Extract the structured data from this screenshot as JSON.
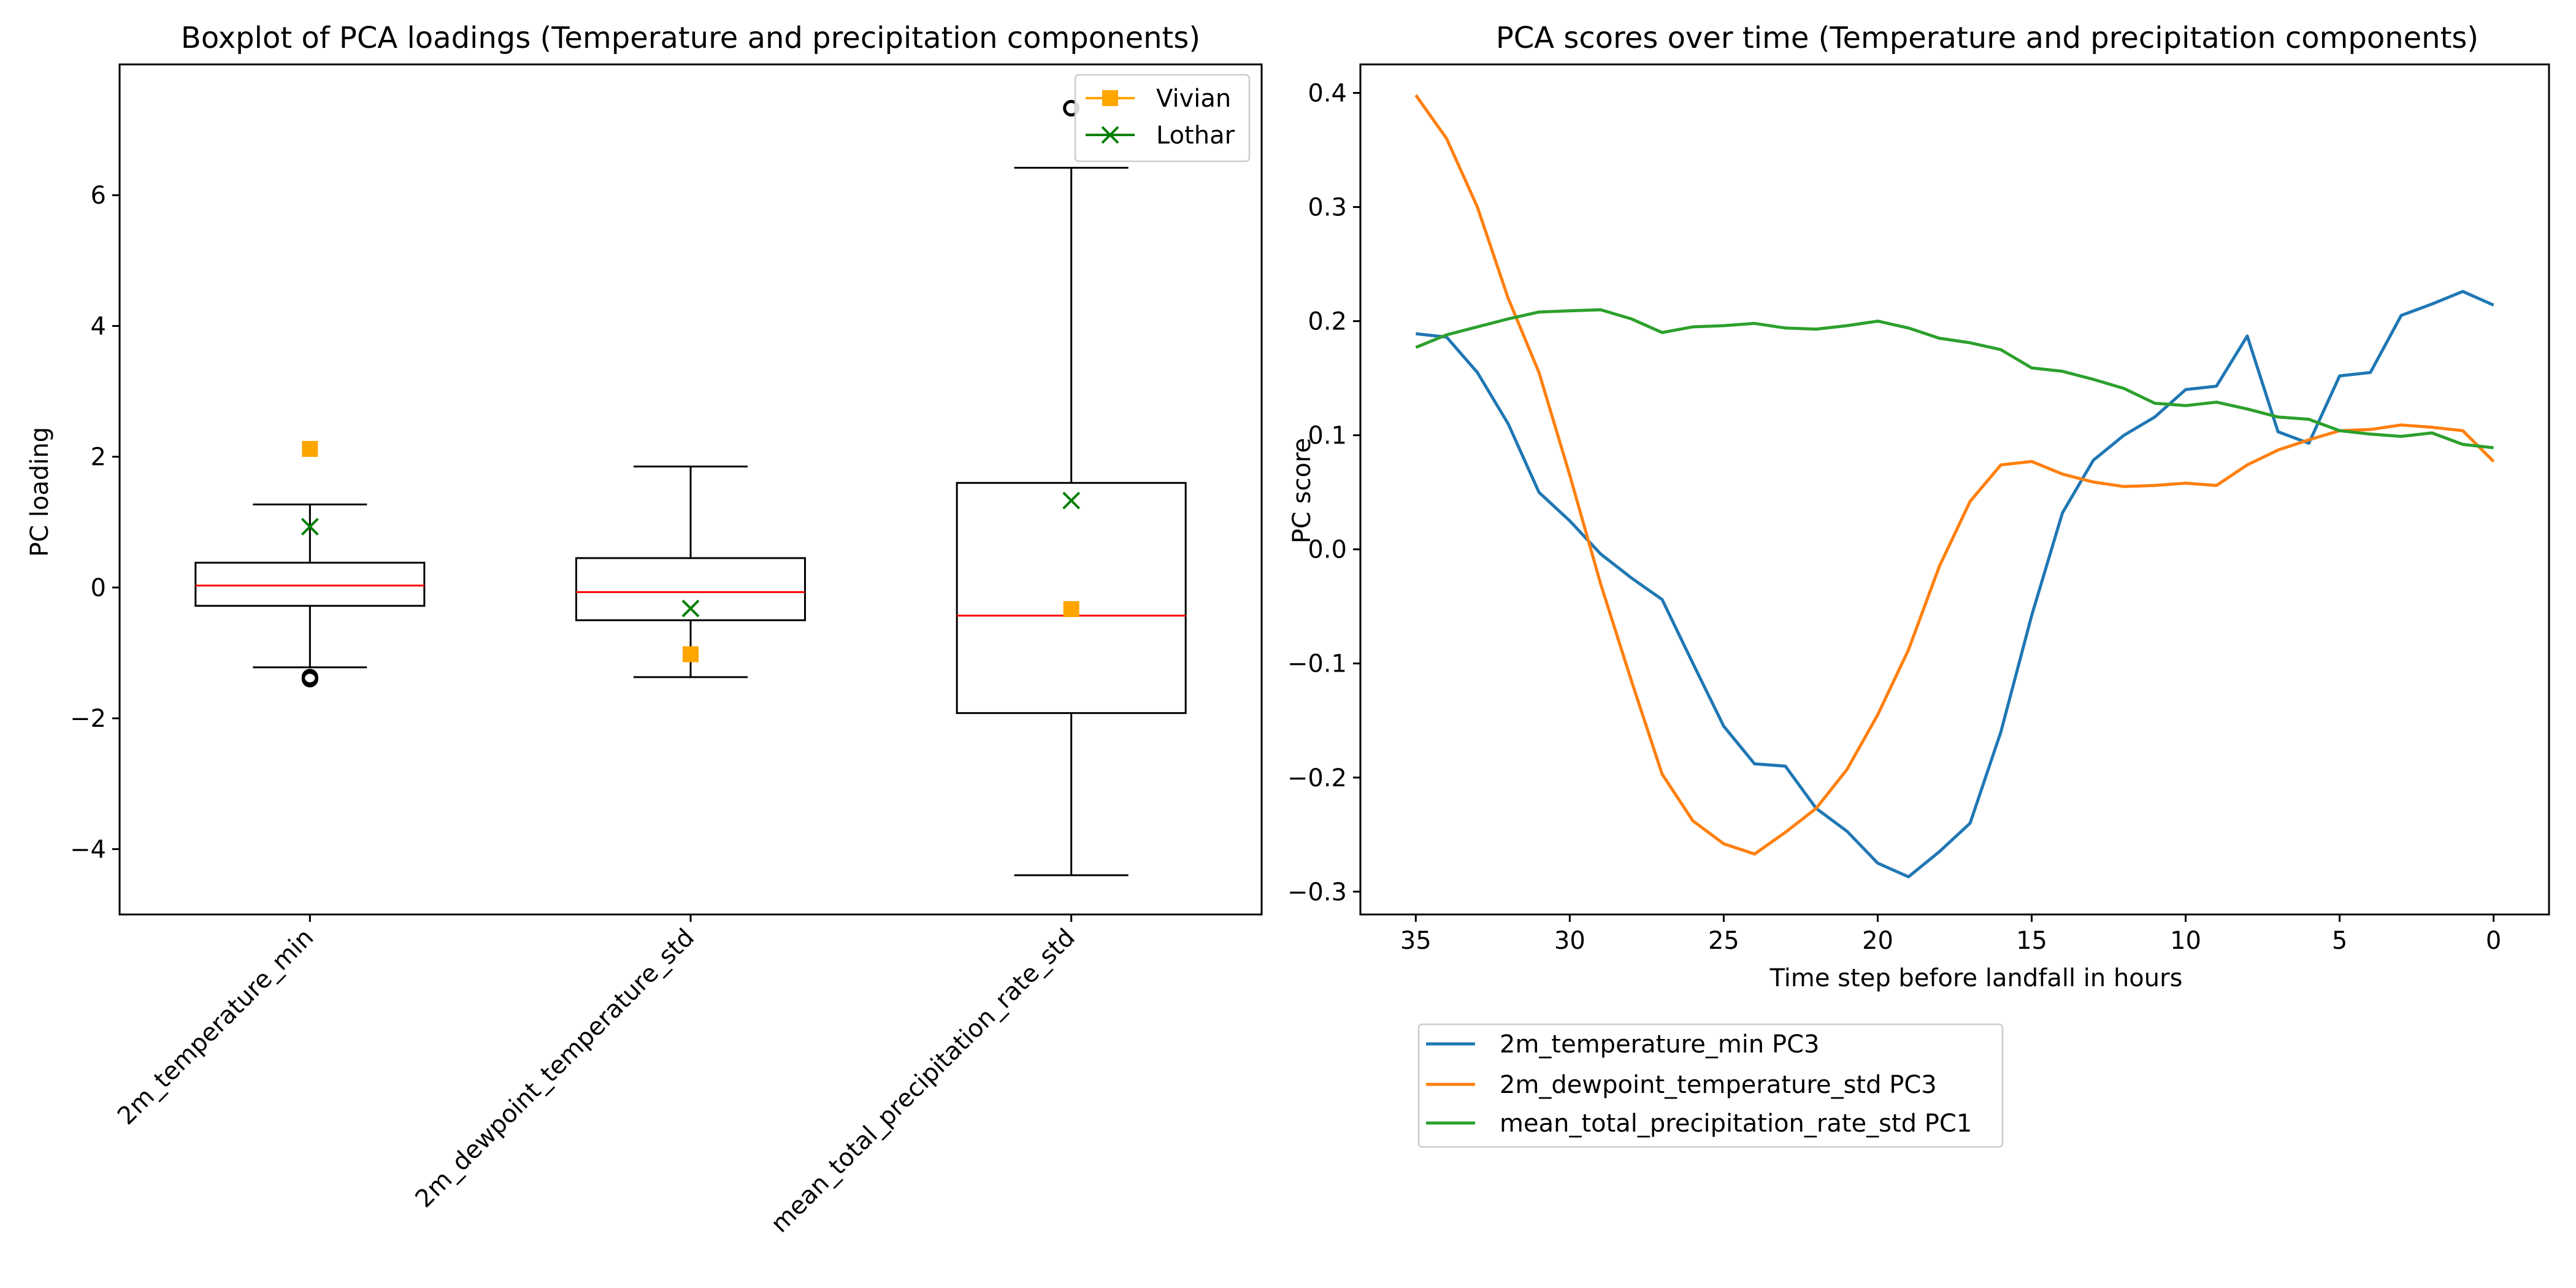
{
  "charts": [
    {
      "title": "Boxplot of PCA loadings (Temperature and precipitation components)",
      "ylabel": "PC loading",
      "yticks": [
        "−4",
        "−2",
        "0",
        "2",
        "4",
        "6"
      ],
      "legend": [
        {
          "label": "Vivian",
          "color": "#ffa500",
          "marker": "square"
        },
        {
          "label": "Lothar",
          "color": "#008000",
          "marker": "x"
        }
      ]
    },
    {
      "title": "PCA scores over time (Temperature and precipitation components)",
      "xlabel": "Time step before landfall in hours",
      "ylabel": "PC score",
      "xticks": [
        "35",
        "30",
        "25",
        "20",
        "15",
        "10",
        "5",
        "0"
      ],
      "yticks": [
        "−0.3",
        "−0.2",
        "−0.1",
        "0.0",
        "0.1",
        "0.2",
        "0.3",
        "0.4"
      ]
    }
  ],
  "chart_data": [
    {
      "type": "boxplot",
      "title": "Boxplot of PCA loadings (Temperature and precipitation components)",
      "ylabel": "PC loading",
      "ylim": [
        -5,
        8
      ],
      "categories": [
        "2m_temperature_min",
        "2m_dewpoint_temperature_std",
        "mean_total_precipitation_rate_std"
      ],
      "boxes": [
        {
          "whisker_low": -1.22,
          "q1": -0.28,
          "median": 0.03,
          "q3": 0.38,
          "whisker_high": 1.27,
          "fliers": [
            -1.37,
            -1.4
          ]
        },
        {
          "whisker_low": -1.37,
          "q1": -0.5,
          "median": -0.07,
          "q3": 0.45,
          "whisker_high": 1.85,
          "fliers": []
        },
        {
          "whisker_low": -4.4,
          "q1": -1.92,
          "median": -0.43,
          "q3": 1.6,
          "whisker_high": 6.42,
          "fliers": [
            7.33
          ]
        }
      ],
      "series": [
        {
          "name": "Vivian",
          "color": "#ffa500",
          "marker": "square",
          "values": [
            2.12,
            -1.02,
            -0.33
          ]
        },
        {
          "name": "Lothar",
          "color": "#008000",
          "marker": "x",
          "values": [
            0.93,
            -0.32,
            1.33
          ]
        }
      ],
      "grid": false,
      "legend_position": "upper right"
    },
    {
      "type": "line",
      "title": "PCA scores over time (Temperature and precipitation components)",
      "xlabel": "Time step before landfall in hours",
      "ylabel": "PC score",
      "xlim": [
        36.8,
        -1.8
      ],
      "ylim": [
        -0.32,
        0.425
      ],
      "x": [
        35,
        34,
        33,
        32,
        31,
        30,
        29,
        28,
        27,
        26,
        25,
        24,
        23,
        22,
        21,
        20,
        19,
        18,
        17,
        16,
        15,
        14,
        13,
        12,
        11,
        10,
        9,
        8,
        7,
        6,
        5,
        4,
        3,
        2,
        1,
        0
      ],
      "series": [
        {
          "name": "2m_temperature_min PC3",
          "color": "#1f77b4",
          "values": [
            0.189,
            0.186,
            0.155,
            0.11,
            0.05,
            0.025,
            -0.004,
            -0.025,
            -0.044,
            -0.1,
            -0.155,
            -0.188,
            -0.19,
            -0.227,
            -0.247,
            -0.275,
            -0.287,
            -0.265,
            -0.24,
            -0.16,
            -0.058,
            0.032,
            0.078,
            0.1,
            0.116,
            0.14,
            0.143,
            0.187,
            0.103,
            0.093,
            0.152,
            0.155,
            0.205,
            0.215,
            0.226,
            0.214
          ]
        },
        {
          "name": "2m_dewpoint_temperature_std PC3",
          "color": "#ff7f0e",
          "values": [
            0.398,
            0.36,
            0.3,
            0.22,
            0.155,
            0.065,
            -0.03,
            -0.115,
            -0.197,
            -0.238,
            -0.258,
            -0.267,
            -0.248,
            -0.227,
            -0.193,
            -0.145,
            -0.088,
            -0.015,
            0.042,
            0.074,
            0.077,
            0.066,
            0.059,
            0.055,
            0.056,
            0.058,
            0.056,
            0.074,
            0.087,
            0.096,
            0.104,
            0.105,
            0.109,
            0.107,
            0.104,
            0.077
          ]
        },
        {
          "name": "mean_total_precipitation_rate_std PC1",
          "color": "#2ca02c",
          "values": [
            0.177,
            0.188,
            0.195,
            0.202,
            0.208,
            0.209,
            0.21,
            0.202,
            0.19,
            0.195,
            0.196,
            0.198,
            0.194,
            0.193,
            0.196,
            0.2,
            0.194,
            0.185,
            0.181,
            0.175,
            0.159,
            0.156,
            0.149,
            0.141,
            0.128,
            0.126,
            0.129,
            0.123,
            0.116,
            0.114,
            0.104,
            0.101,
            0.099,
            0.102,
            0.092,
            0.089
          ]
        }
      ],
      "grid": false,
      "legend_position": "below plot, left"
    }
  ]
}
